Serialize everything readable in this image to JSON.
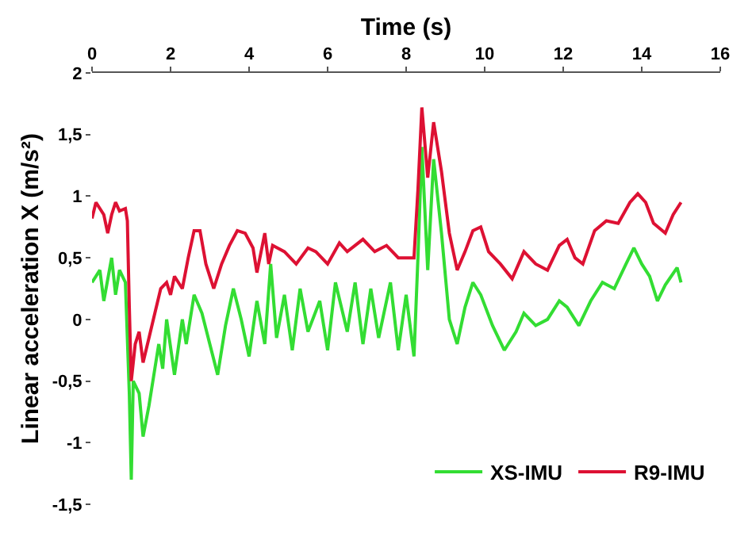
{
  "chart_data": {
    "type": "line",
    "xlabel": "Time (s)",
    "ylabel": "Linear acceleration X (m/s²)",
    "xlim": [
      0,
      16
    ],
    "xticks": [
      0,
      2,
      4,
      6,
      8,
      10,
      12,
      14,
      16
    ],
    "ylim": [
      -1.5,
      2
    ],
    "yticks": [
      {
        "value": -1.5,
        "label": "-1,5"
      },
      -1,
      {
        "value": -0.5,
        "label": "-0,5"
      },
      0,
      {
        "value": 0.5,
        "label": "0,5"
      },
      1,
      {
        "value": 1.5,
        "label": "1,5"
      },
      2
    ],
    "legend": "bottom right",
    "marker": "none",
    "line_style": "solid",
    "series": [
      {
        "name": "XS-IMU",
        "color": "#33dd33",
        "x": [
          0,
          0.2,
          0.3,
          0.5,
          0.6,
          0.7,
          0.85,
          0.95,
          1.0,
          1.05,
          1.2,
          1.3,
          1.45,
          1.6,
          1.7,
          1.8,
          1.9,
          2.1,
          2.3,
          2.4,
          2.6,
          2.8,
          3.0,
          3.2,
          3.4,
          3.6,
          3.8,
          4.0,
          4.2,
          4.4,
          4.55,
          4.7,
          4.9,
          5.1,
          5.3,
          5.5,
          5.8,
          6.0,
          6.2,
          6.5,
          6.7,
          6.9,
          7.1,
          7.3,
          7.6,
          7.8,
          8.0,
          8.2,
          8.3,
          8.4,
          8.55,
          8.7,
          8.9,
          9.1,
          9.3,
          9.5,
          9.7,
          9.9,
          10.2,
          10.5,
          10.8,
          11.0,
          11.3,
          11.6,
          11.9,
          12.1,
          12.4,
          12.7,
          13.0,
          13.3,
          13.6,
          13.8,
          14.0,
          14.2,
          14.4,
          14.6,
          14.9,
          15.0
        ],
        "values": [
          0.3,
          0.4,
          0.15,
          0.5,
          0.2,
          0.4,
          0.3,
          -0.6,
          -1.3,
          -0.5,
          -0.6,
          -0.95,
          -0.7,
          -0.4,
          -0.2,
          -0.4,
          0.0,
          -0.45,
          0.0,
          -0.2,
          0.2,
          0.05,
          -0.2,
          -0.45,
          -0.05,
          0.25,
          0.0,
          -0.3,
          0.15,
          -0.2,
          0.45,
          -0.15,
          0.2,
          -0.25,
          0.25,
          -0.1,
          0.15,
          -0.25,
          0.3,
          -0.1,
          0.3,
          -0.2,
          0.25,
          -0.15,
          0.3,
          -0.25,
          0.2,
          -0.3,
          0.5,
          1.4,
          0.4,
          1.3,
          0.7,
          0.0,
          -0.2,
          0.1,
          0.3,
          0.2,
          -0.05,
          -0.25,
          -0.1,
          0.05,
          -0.05,
          0.0,
          0.15,
          0.1,
          -0.05,
          0.15,
          0.3,
          0.25,
          0.45,
          0.58,
          0.45,
          0.35,
          0.15,
          0.28,
          0.42,
          0.3
        ]
      },
      {
        "name": "R9-IMU",
        "color": "#dd1133",
        "x": [
          0,
          0.1,
          0.3,
          0.4,
          0.5,
          0.6,
          0.7,
          0.85,
          0.9,
          0.95,
          1.0,
          1.1,
          1.2,
          1.3,
          1.45,
          1.6,
          1.75,
          1.9,
          2.0,
          2.1,
          2.3,
          2.45,
          2.6,
          2.75,
          2.9,
          3.1,
          3.3,
          3.5,
          3.7,
          3.9,
          4.1,
          4.2,
          4.4,
          4.5,
          4.6,
          4.9,
          5.2,
          5.5,
          5.7,
          6.0,
          6.3,
          6.5,
          6.9,
          7.2,
          7.5,
          7.8,
          8.2,
          8.3,
          8.4,
          8.55,
          8.7,
          8.9,
          9.1,
          9.3,
          9.5,
          9.7,
          9.9,
          10.1,
          10.4,
          10.7,
          11.0,
          11.3,
          11.6,
          11.9,
          12.1,
          12.3,
          12.5,
          12.8,
          13.1,
          13.4,
          13.7,
          13.9,
          14.1,
          14.3,
          14.6,
          14.8,
          15.0
        ],
        "values": [
          0.82,
          0.95,
          0.85,
          0.7,
          0.85,
          0.95,
          0.88,
          0.9,
          0.8,
          0.1,
          -0.5,
          -0.2,
          -0.1,
          -0.35,
          -0.15,
          0.05,
          0.25,
          0.3,
          0.2,
          0.35,
          0.25,
          0.5,
          0.72,
          0.72,
          0.45,
          0.25,
          0.45,
          0.6,
          0.72,
          0.7,
          0.58,
          0.38,
          0.7,
          0.45,
          0.6,
          0.55,
          0.45,
          0.58,
          0.55,
          0.45,
          0.62,
          0.55,
          0.65,
          0.55,
          0.6,
          0.5,
          0.5,
          1.05,
          1.72,
          1.15,
          1.6,
          1.2,
          0.7,
          0.4,
          0.55,
          0.72,
          0.75,
          0.55,
          0.45,
          0.33,
          0.55,
          0.45,
          0.4,
          0.6,
          0.65,
          0.5,
          0.45,
          0.72,
          0.8,
          0.78,
          0.95,
          1.02,
          0.95,
          0.78,
          0.7,
          0.85,
          0.95
        ]
      }
    ]
  }
}
